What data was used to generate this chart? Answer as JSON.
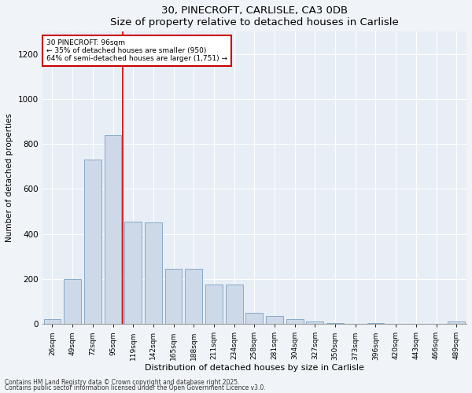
{
  "title1": "30, PINECROFT, CARLISLE, CA3 0DB",
  "title2": "Size of property relative to detached houses in Carlisle",
  "xlabel": "Distribution of detached houses by size in Carlisle",
  "ylabel": "Number of detached properties",
  "bar_labels": [
    "26sqm",
    "49sqm",
    "72sqm",
    "95sqm",
    "119sqm",
    "142sqm",
    "165sqm",
    "188sqm",
    "211sqm",
    "234sqm",
    "258sqm",
    "281sqm",
    "304sqm",
    "327sqm",
    "350sqm",
    "373sqm",
    "396sqm",
    "420sqm",
    "443sqm",
    "466sqm",
    "489sqm"
  ],
  "bar_values": [
    20,
    200,
    730,
    840,
    455,
    450,
    245,
    245,
    175,
    175,
    50,
    35,
    20,
    10,
    5,
    0,
    5,
    0,
    0,
    0,
    10
  ],
  "bar_color": "#cdd9e8",
  "bar_edgecolor": "#7a9fc2",
  "vline_x_idx": 3.5,
  "vline_color": "#cc0000",
  "annotation_line1": "30 PINECROFT: 96sqm",
  "annotation_line2": "← 35% of detached houses are smaller (950)",
  "annotation_line3": "64% of semi-detached houses are larger (1,751) →",
  "annotation_box_color": "#ffffff",
  "annotation_box_edgecolor": "#cc0000",
  "ylim": [
    0,
    1300
  ],
  "yticks": [
    0,
    200,
    400,
    600,
    800,
    1000,
    1200
  ],
  "bg_color": "#e8eef5",
  "fig_bg_color": "#f0f4f8",
  "footer1": "Contains HM Land Registry data © Crown copyright and database right 2025.",
  "footer2": "Contains public sector information licensed under the Open Government Licence v3.0."
}
